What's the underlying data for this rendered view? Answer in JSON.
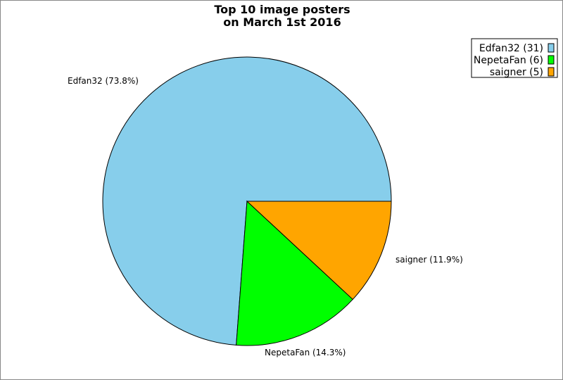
{
  "chart_data": {
    "type": "pie",
    "title": [
      "Top 10 image posters",
      "on March 1st 2016"
    ],
    "slices": [
      {
        "name": "Edfan32",
        "value": 31,
        "percent_label": "Edfan32 (73.8%)",
        "legend_label": "Edfan32 (31)",
        "color": "#87ceeb"
      },
      {
        "name": "NepetaFan",
        "value": 6,
        "percent_label": "NepetaFan (14.3%)",
        "legend_label": "NepetaFan (6)",
        "color": "#00ff00"
      },
      {
        "name": "saigner",
        "value": 5,
        "percent_label": "saigner (11.9%)",
        "legend_label": "saigner (5)",
        "color": "#ffa500"
      }
    ],
    "start_angle": "3 o'clock",
    "direction": "counterclockwise",
    "legend_position": "top-right"
  }
}
